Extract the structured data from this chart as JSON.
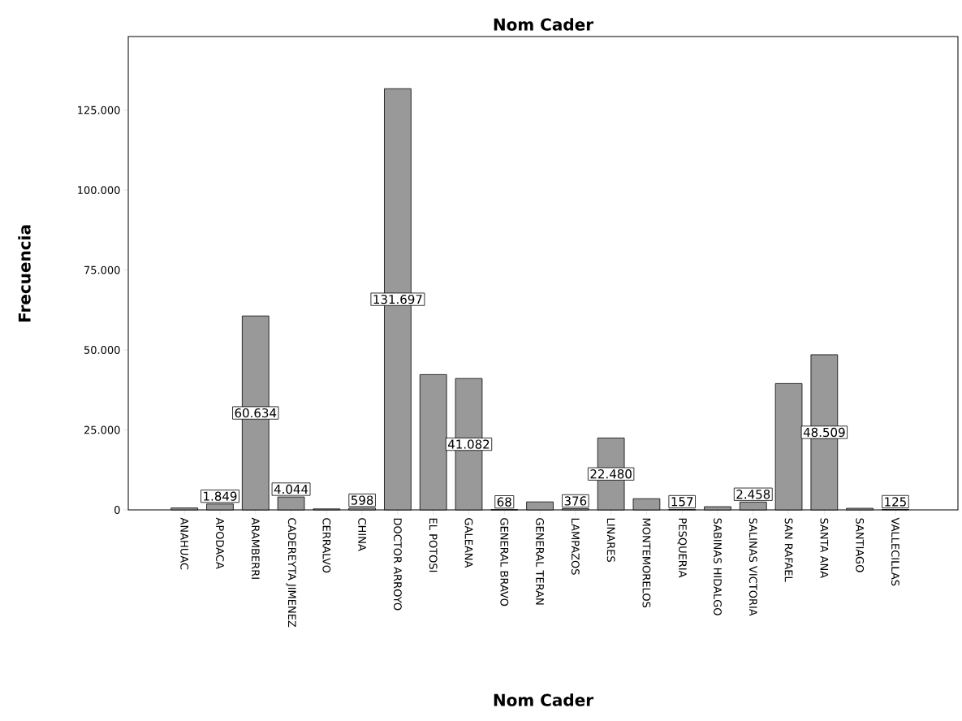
{
  "chart_data": {
    "type": "bar",
    "title": "Nom Cader",
    "xlabel": "Nom Cader",
    "ylabel": "Frecuencia",
    "categories": [
      "ANAHUAC",
      "APODACA",
      "ARAMBERRI",
      "CADEREYTA JIMENEZ",
      "CERRALVO",
      "CHINA",
      "DOCTOR ARROYO",
      "EL POTOSI",
      "GALEANA",
      "GENERAL BRAVO",
      "GENERAL TERAN",
      "LAMPAZOS",
      "LINARES",
      "MONTEMORELOS",
      "PESQUERIA",
      "SABINAS HIDALGO",
      "SALINAS VICTORIA",
      "SAN RAFAEL",
      "SANTA ANA",
      "SANTIAGO",
      "VALLECILLAS"
    ],
    "values": [
      600,
      1849,
      60634,
      4044,
      300,
      598,
      131697,
      42300,
      41082,
      68,
      2500,
      376,
      22480,
      3500,
      157,
      1000,
      2458,
      39500,
      48509,
      500,
      125
    ],
    "value_labels": [
      null,
      "1.849",
      "60.634",
      "4.044",
      null,
      "598",
      "131.697",
      null,
      "41.082",
      "68",
      null,
      "376",
      "22.480",
      null,
      "157",
      null,
      "2.458",
      null,
      "48.509",
      null,
      "125"
    ],
    "color": "#999999",
    "ylim": [
      0,
      148000
    ],
    "yticks": [
      {
        "value": 0,
        "label": "0"
      },
      {
        "value": 25000,
        "label": "25.000"
      },
      {
        "value": 50000,
        "label": "50.000"
      },
      {
        "value": 75000,
        "label": "75.000"
      },
      {
        "value": 100000,
        "label": "100.000"
      },
      {
        "value": 125000,
        "label": "125.000"
      }
    ]
  }
}
